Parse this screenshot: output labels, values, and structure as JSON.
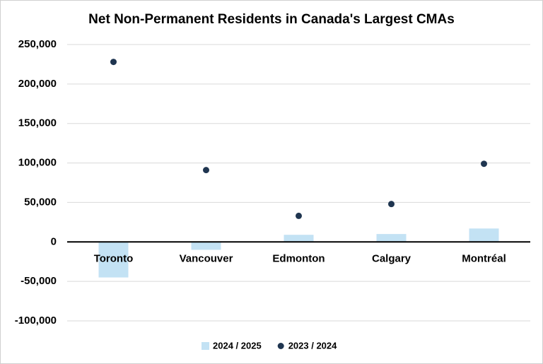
{
  "chart_data": {
    "type": "bar",
    "title": "Net Non-Permanent Residents in Canada's Largest CMAs",
    "categories": [
      "Toronto",
      "Vancouver",
      "Edmonton",
      "Calgary",
      "Montréal"
    ],
    "series": [
      {
        "name": "2024 / 2025",
        "type": "bar",
        "color": "#c3e2f4",
        "values": [
          -45000,
          -10000,
          9000,
          10000,
          17000
        ]
      },
      {
        "name": "2023 / 2024",
        "type": "scatter",
        "color": "#1f3550",
        "values": [
          228000,
          91000,
          33000,
          48000,
          99000
        ]
      }
    ],
    "ylim": [
      -100000,
      250000
    ],
    "yticks": [
      {
        "value": -100000,
        "label": "-100,000"
      },
      {
        "value": -50000,
        "label": "-50,000"
      },
      0,
      {
        "value": 50000,
        "label": "50,000"
      },
      {
        "value": 100000,
        "label": "100,000"
      },
      {
        "value": 150000,
        "label": "150,000"
      },
      {
        "value": 200000,
        "label": "200,000"
      },
      {
        "value": 250000,
        "label": "250,000"
      }
    ],
    "grid": true,
    "legend": "bottom"
  }
}
